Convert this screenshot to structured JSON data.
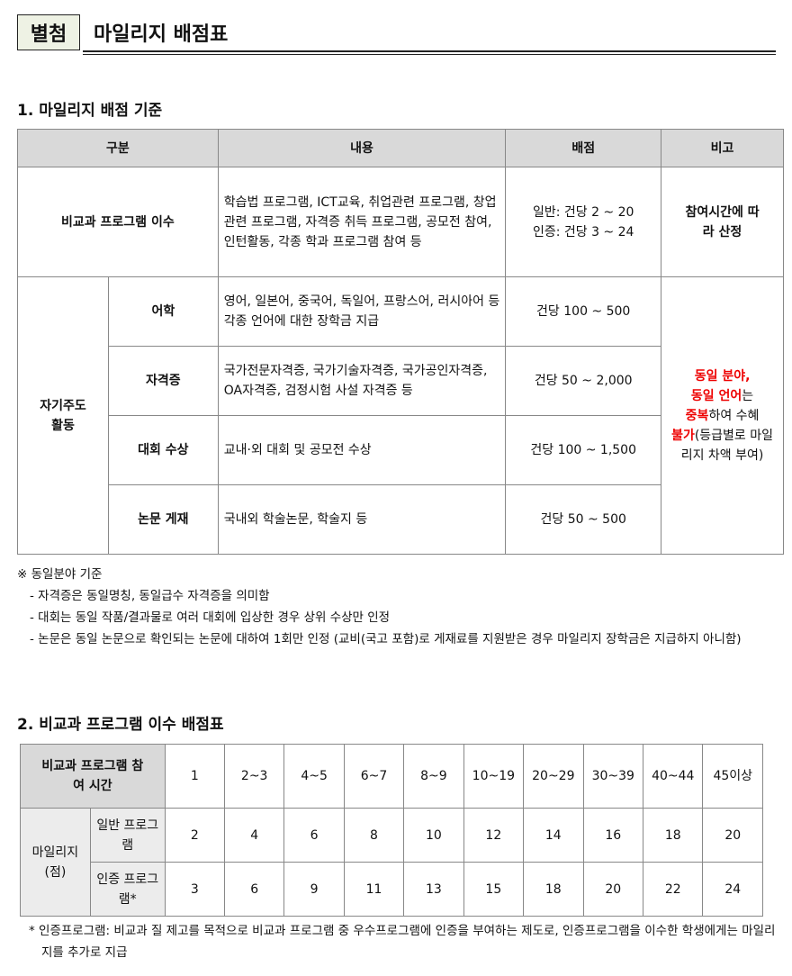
{
  "header": {
    "tag": "별첨",
    "title": "마일리지 배점표"
  },
  "section1": {
    "heading": "1. 마일리지 배점 기준",
    "columns": [
      "구분",
      "내용",
      "배점",
      "비고"
    ],
    "row1": {
      "category": "비교과 프로그램 이수",
      "content": "학습법 프로그램, ICT교육, 취업관련 프로그램, 창업관련 프로그램, 자격증 취득 프로그램, 공모전 참여, 인턴활동, 각종 학과 프로그램 참여 등",
      "score_general": "일반: 건당 2 ~ 20",
      "score_certified": "인증: 건당 3 ~ 24",
      "remark": "참여시간에 따라 산정"
    },
    "group": "자기주도 활동",
    "rows": [
      {
        "sub": "어학",
        "content": "영어, 일본어, 중국어, 독일어, 프랑스어, 러시아어 등 각종 언어에 대한 장학금 지급",
        "score": "건당 100 ~ 500"
      },
      {
        "sub": "자격증",
        "content": "국가전문자격증, 국가기술자격증, 국가공인자격증, OA자격증, 검정시험 사설 자격증 등",
        "score": "건당 50 ~ 2,000"
      },
      {
        "sub": "대회 수상",
        "content": "교내·외 대회 및 공모전 수상",
        "score": "건당 100 ~ 1,500"
      },
      {
        "sub": "논문 게재",
        "content": "국내외 학술논문, 학술지 등",
        "score": "건당 50 ~ 500"
      }
    ],
    "remark": {
      "r1": "동일 분야,",
      "r2": "동일 언어",
      "t2": "는",
      "r3": "중복",
      "t3": "하여 수혜",
      "r4": "불가",
      "t4": "(등급별로 마일리지 차액 부여)"
    },
    "notes": [
      "※ 동일분야 기준",
      "- 자격증은 동일명칭, 동일급수 자격증을 의미함",
      "- 대회는 동일 작품/결과물로 여러 대회에 입상한 경우 상위 수상만 인정",
      "- 논문은 동일 논문으로 확인되는 논문에 대하여 1회만 인정 (교비(국고 포함)로 게재료를 지원받은 경우 마일리지 장학금은 지급하지 아니함)"
    ]
  },
  "section2": {
    "heading": "2. 비교과 프로그램 이수 배점표",
    "corner": "비교과 프로그램 참여 시간",
    "hours": [
      "1",
      "2~3",
      "4~5",
      "6~7",
      "8~9",
      "10~19",
      "20~29",
      "30~39",
      "40~44",
      "45이상"
    ],
    "row_group": "마일리지 (점)",
    "general_label": "일반 프로그램",
    "general": [
      "2",
      "4",
      "6",
      "8",
      "10",
      "12",
      "14",
      "16",
      "18",
      "20"
    ],
    "certified_label": "인증 프로그램*",
    "certified": [
      "3",
      "6",
      "9",
      "11",
      "13",
      "15",
      "18",
      "20",
      "22",
      "24"
    ],
    "footnote": "* 인증프로그램: 비교과 질 제고를 목적으로 비교과 프로그램 중 우수프로그램에 인증을 부여하는 제도로, 인증프로그램을 이수한 학생에게는 마일리지를 추가로 지급"
  },
  "colors": {
    "header_gray": "#d9d9d9",
    "tag_bg": "#eef2e4",
    "highlight_red": "#e00000"
  }
}
